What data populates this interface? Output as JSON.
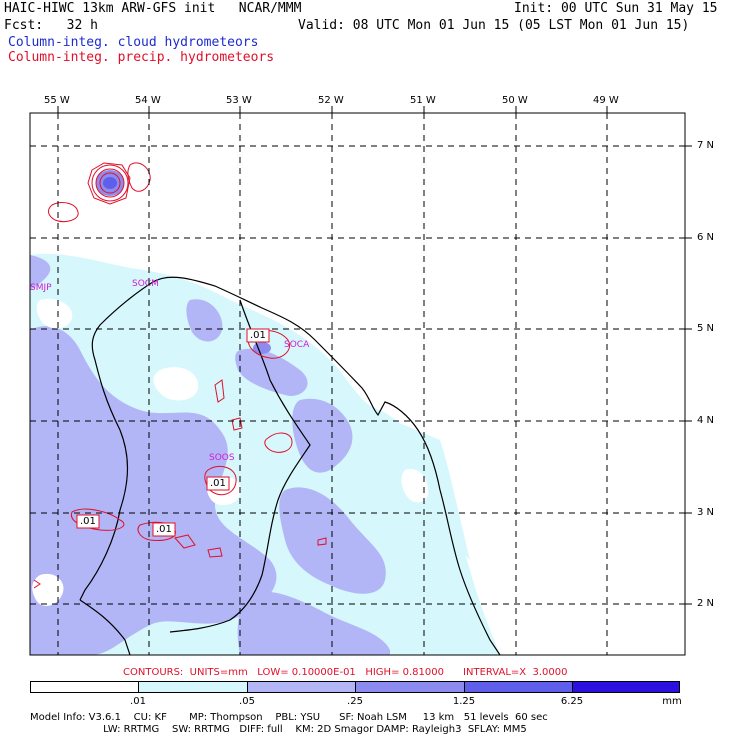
{
  "header": {
    "line1_left": "HAIC-HIWC 13km ARW-GFS init   NCAR/MMM",
    "line1_right": "Init: 00 UTC Sun 31 May 15",
    "line2_left": "Fcst:   32 h",
    "line2_right": "Valid: 08 UTC Mon 01 Jun 15 (05 LST Mon 01 Jun 15)",
    "field1": "Column-integ. cloud hydrometeors",
    "field2": "Column-integ. precip. hydrometeors"
  },
  "axes": {
    "lon_labels": [
      "55 W",
      "54 W",
      "53 W",
      "52 W",
      "51 W",
      "50 W",
      "49 W"
    ],
    "lat_labels": [
      "7 N",
      "6 N",
      "5 N",
      "4 N",
      "3 N",
      "2 N"
    ]
  },
  "stations": [
    "SMJP",
    "SOCM",
    "SOCA",
    "SOOS"
  ],
  "contour_labels": [
    ".01",
    ".01",
    ".01",
    ".01"
  ],
  "contours_line": "CONTOURS:  UNITS=mm   LOW= 0.10000E-01   HIGH= 0.81000      INTERVAL=X  3.0000",
  "legend": {
    "labels": [
      ".01",
      ".05",
      ".25",
      "1.25",
      "6.25",
      "mm"
    ],
    "colors": [
      "#ffffff",
      "#d6f7fc",
      "#b2b6f7",
      "#8c8cf0",
      "#5f5fec",
      "#2b10e0"
    ]
  },
  "footer": {
    "line1": "Model Info: V3.6.1    CU: KF       MP: Thompson    PBL: YSU      SF: Noah LSM     13 km   51 levels  60 sec",
    "line2": "                       LW: RRTMG    SW: RRTMG   DIFF: full    KM: 2D Smagor DAMP: Rayleigh3  SFLAY: MM5"
  },
  "colors": {
    "cloud_light": "#d6f7fc",
    "cloud_medium": "#b2b6f7",
    "cloud_strong": "#8c8cf0",
    "precip_contour": "#e0102a",
    "station_label": "#d21cd2"
  }
}
